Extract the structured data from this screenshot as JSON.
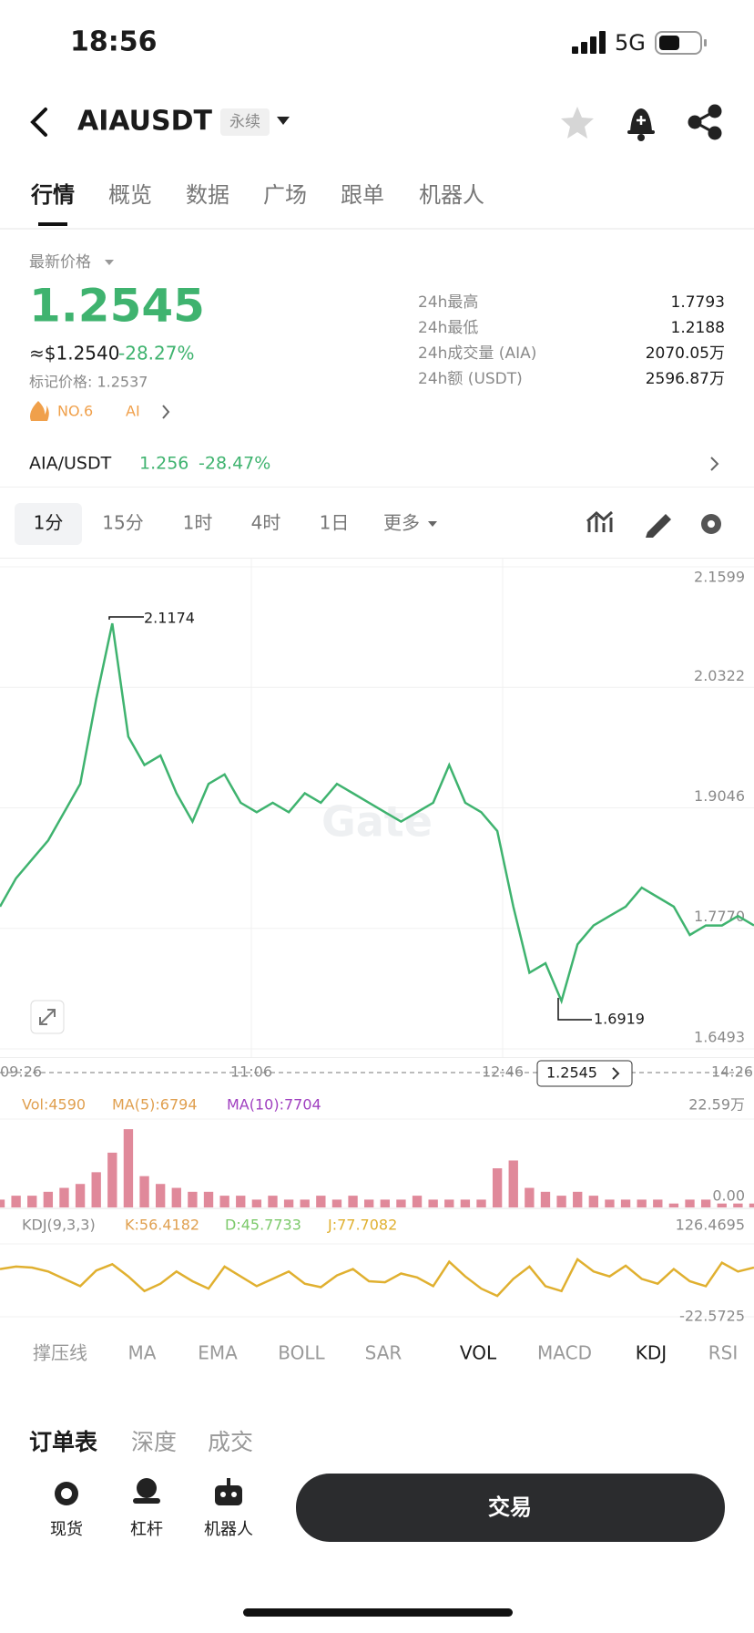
{
  "status_bar": {
    "time": "18:56",
    "network": "5G"
  },
  "header": {
    "symbol": "AIAUSDT",
    "contract": "永续"
  },
  "tabs": [
    "行情",
    "概览",
    "数据",
    "广场",
    "跟单",
    "机器人"
  ],
  "ticker": {
    "price_label": "最新价格",
    "price": "1.2545",
    "usd_price": "≈$1.2540",
    "change": "-28.27%",
    "mark_price": "标记价格: 1.2537",
    "rank": "NO.6",
    "tag": "AI",
    "stats": [
      {
        "label": "24h最高",
        "value": "1.7793"
      },
      {
        "label": "24h最低",
        "value": "1.2188"
      },
      {
        "label": "24h成交量 (AIA)",
        "value": "2070.05万"
      },
      {
        "label": "24h额 (USDT)",
        "value": "2596.87万"
      }
    ]
  },
  "spot": {
    "pair": "AIA/USDT",
    "price": "1.256",
    "change": "-28.47%"
  },
  "intervals": [
    "1分",
    "15分",
    "1时",
    "4时",
    "1日",
    "更多"
  ],
  "price_chart": {
    "watermark": "Gate",
    "ylim": [
      1.6493,
      2.1599
    ],
    "yticks": [
      1.6493,
      {
        "value": 1.777,
        "label": "1.7770"
      },
      1.9046,
      2.0322,
      2.1599
    ],
    "x_labels": [
      "09:26",
      "11:06",
      "12:46",
      "14:26"
    ],
    "high_label": "2.1174",
    "low_label": "1.6919",
    "last_price": "1.2545",
    "color": "#3fb36f",
    "values": [
      1.8,
      1.83,
      1.85,
      1.87,
      1.9,
      1.93,
      2.02,
      2.1,
      1.98,
      1.95,
      1.96,
      1.92,
      1.89,
      1.93,
      1.94,
      1.91,
      1.9,
      1.91,
      1.9,
      1.92,
      1.91,
      1.93,
      1.92,
      1.91,
      1.9,
      1.89,
      1.9,
      1.91,
      1.95,
      1.91,
      1.9,
      1.88,
      1.8,
      1.73,
      1.74,
      1.7,
      1.76,
      1.78,
      1.79,
      1.8,
      1.82,
      1.81,
      1.8,
      1.77,
      1.78,
      1.78,
      1.79,
      1.78
    ]
  },
  "volume": {
    "labels": [
      "Vol:4590",
      "MA(5):6794",
      "MA(10):7704"
    ],
    "ylim": [
      0,
      22.59
    ],
    "yticks": [
      {
        "value": 0,
        "label": "0.00"
      },
      {
        "value": 22.59,
        "label": "22.59万"
      }
    ],
    "color": "#e0899a",
    "values": [
      2,
      3,
      3,
      4,
      5,
      6,
      9,
      14,
      20,
      8,
      6,
      5,
      4,
      4,
      3,
      3,
      2,
      3,
      2,
      2,
      3,
      2,
      3,
      2,
      2,
      2,
      3,
      2,
      2,
      2,
      2,
      10,
      12,
      5,
      4,
      3,
      4,
      3,
      2,
      2,
      2,
      2,
      1,
      2,
      2,
      1,
      1,
      1
    ]
  },
  "kdj": {
    "labels": [
      "KDJ(9,3,3)",
      "K:56.4182",
      "D:45.7733",
      "J:77.7082"
    ],
    "ylim": [
      -22.5725,
      126.4695
    ],
    "yticks": [
      -22.5725,
      126.4695
    ],
    "color": "#e0b030",
    "values": [
      75,
      80,
      78,
      70,
      55,
      40,
      72,
      85,
      60,
      30,
      45,
      70,
      50,
      35,
      80,
      60,
      40,
      55,
      70,
      45,
      38,
      62,
      75,
      50,
      48,
      66,
      58,
      40,
      90,
      60,
      35,
      20,
      55,
      80,
      40,
      30,
      95,
      70,
      60,
      82,
      55,
      45,
      75,
      50,
      40,
      88,
      70,
      78
    ]
  },
  "indicators": [
    "撑压线",
    "MA",
    "EMA",
    "BOLL",
    "SAR",
    "VOL",
    "MACD",
    "KDJ",
    "RSI"
  ],
  "order_tabs": [
    "订单表",
    "深度",
    "成交"
  ],
  "bottom_nav": [
    "现货",
    "杠杆",
    "机器人"
  ],
  "trade_button": "交易"
}
